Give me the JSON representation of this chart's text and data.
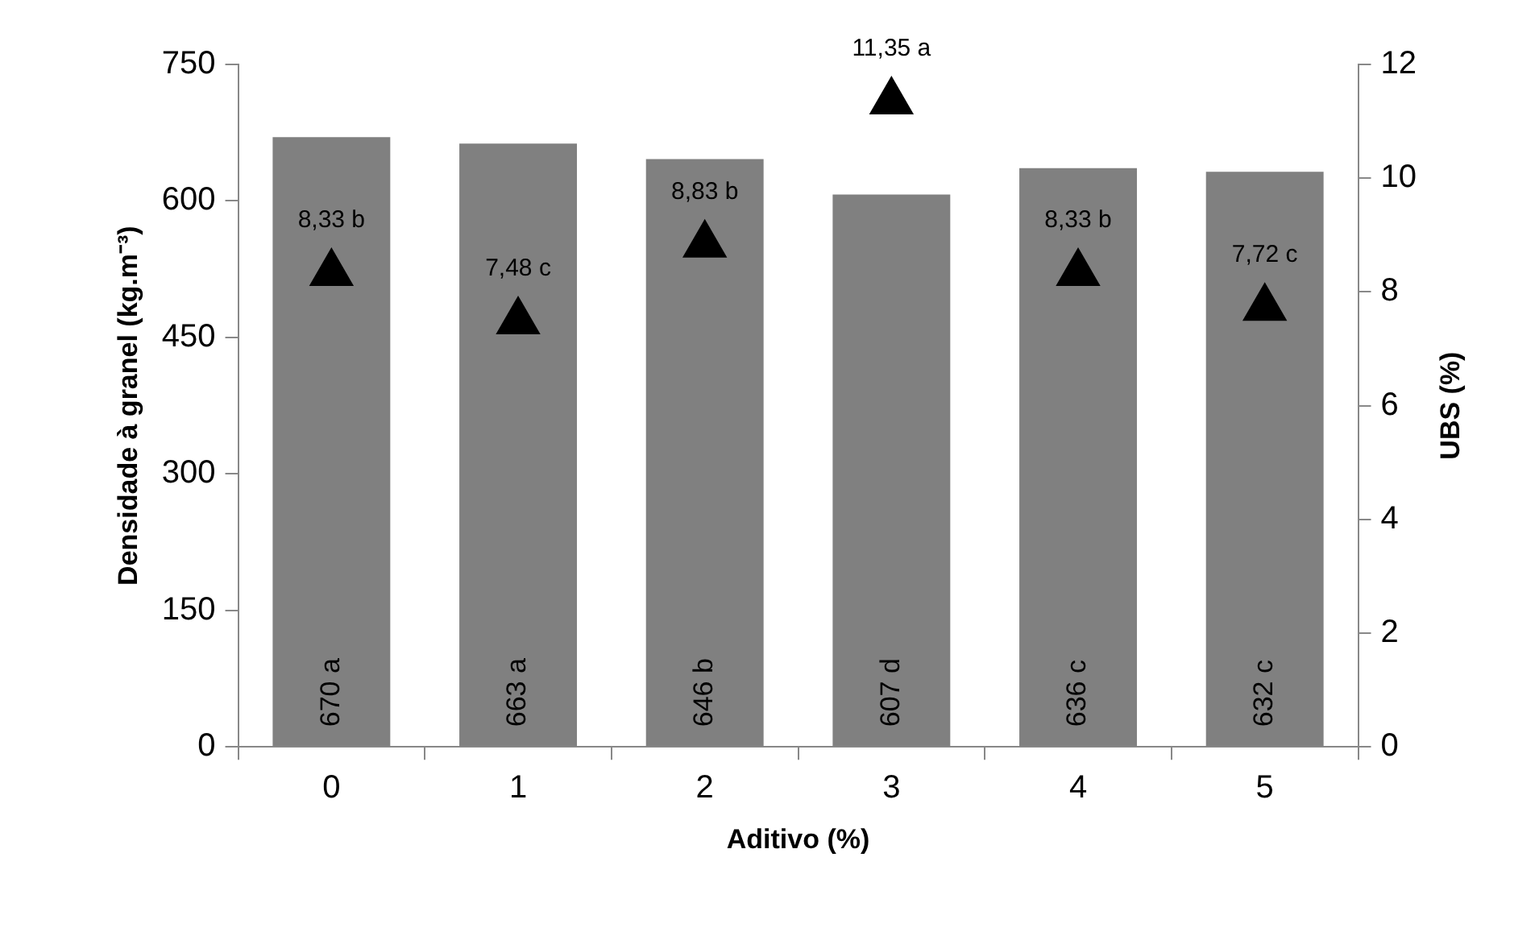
{
  "chart_data": {
    "type": "bar",
    "xlabel": "Aditivo (%)",
    "ylabel": "Densidade à granel (kg.m⁻³)",
    "y2label": "UBS (%)",
    "categories": [
      "0",
      "1",
      "2",
      "3",
      "4",
      "5"
    ],
    "series": [
      {
        "color": "#808080",
        "values": [
          670,
          663,
          646,
          607,
          636,
          632
        ],
        "value_labels": [
          "670 a",
          "663 a",
          "646 b",
          "607 d",
          "636 c",
          "632 c"
        ]
      },
      {
        "type": "scatter",
        "axis": "y2",
        "marker": "triangle",
        "color": "#000000",
        "values": [
          8.33,
          7.48,
          8.83,
          11.35,
          8.33,
          7.72
        ],
        "value_labels": [
          "8,33 b",
          "7,48 c",
          "8,83 b",
          "11,35 a",
          "8,33 b",
          "7,72 c"
        ]
      }
    ],
    "ylim": [
      0,
      750
    ],
    "yticks": [
      0,
      150,
      300,
      450,
      600,
      750
    ],
    "y2lim": [
      0,
      12
    ],
    "y2ticks": [
      0,
      2,
      4,
      6,
      8,
      10,
      12
    ],
    "grid": false,
    "legend": false
  }
}
